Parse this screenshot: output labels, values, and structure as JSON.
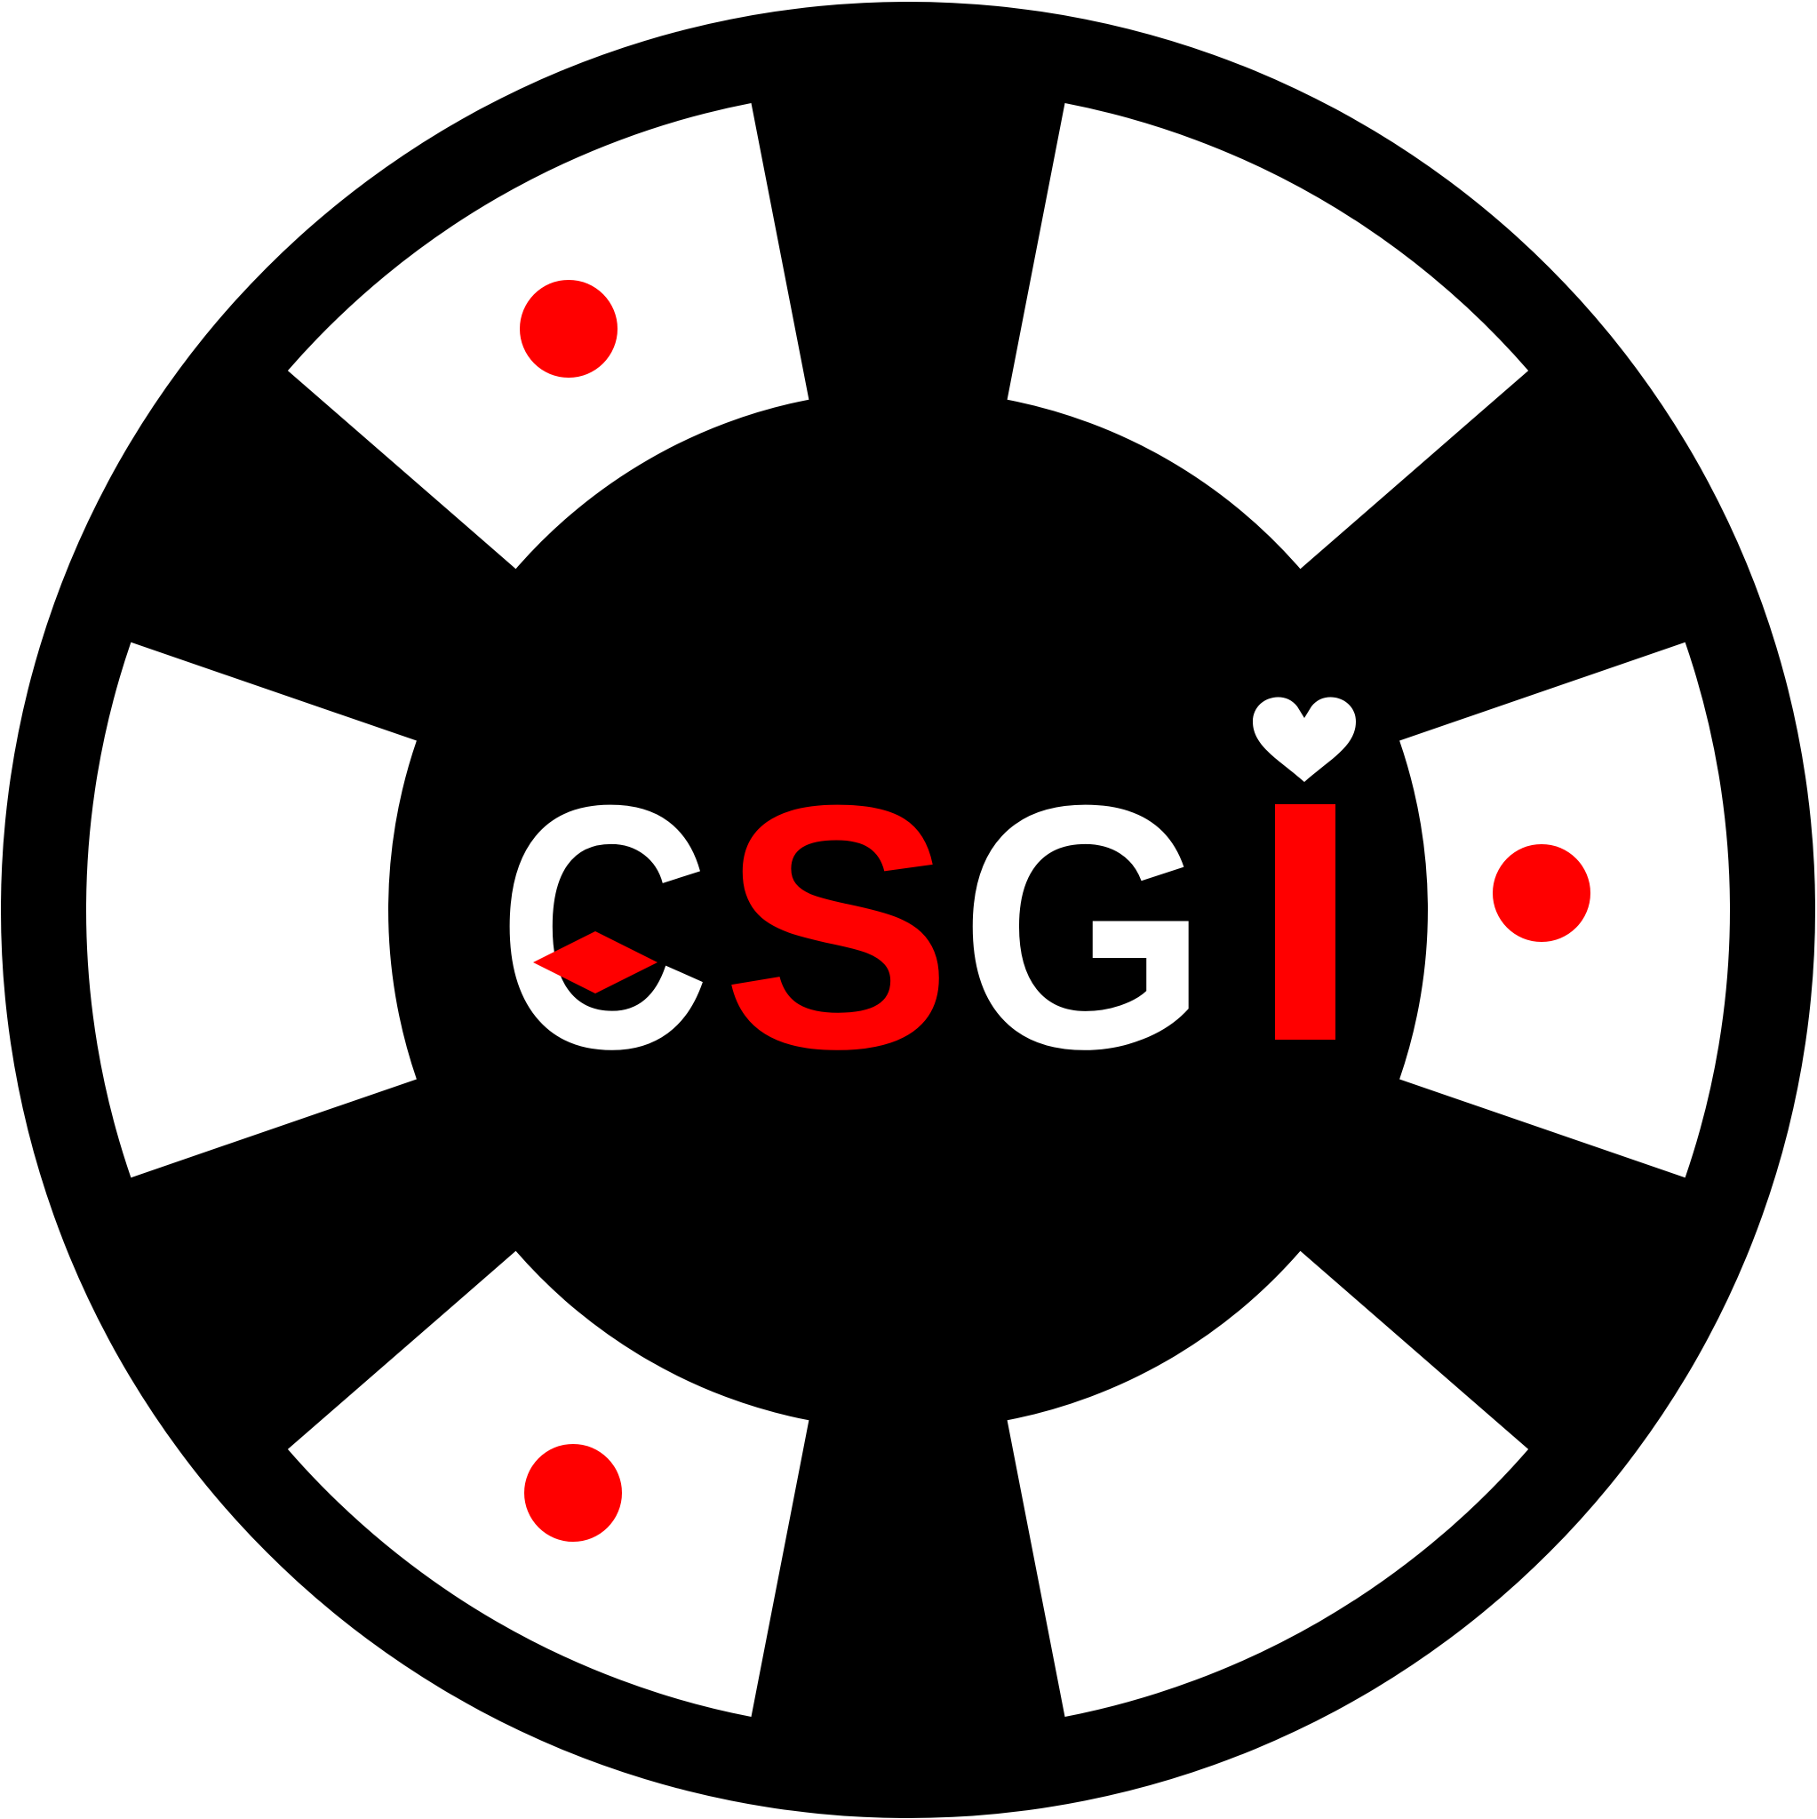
{
  "logo": {
    "letters": [
      "C",
      "S",
      "G",
      "i"
    ]
  }
}
